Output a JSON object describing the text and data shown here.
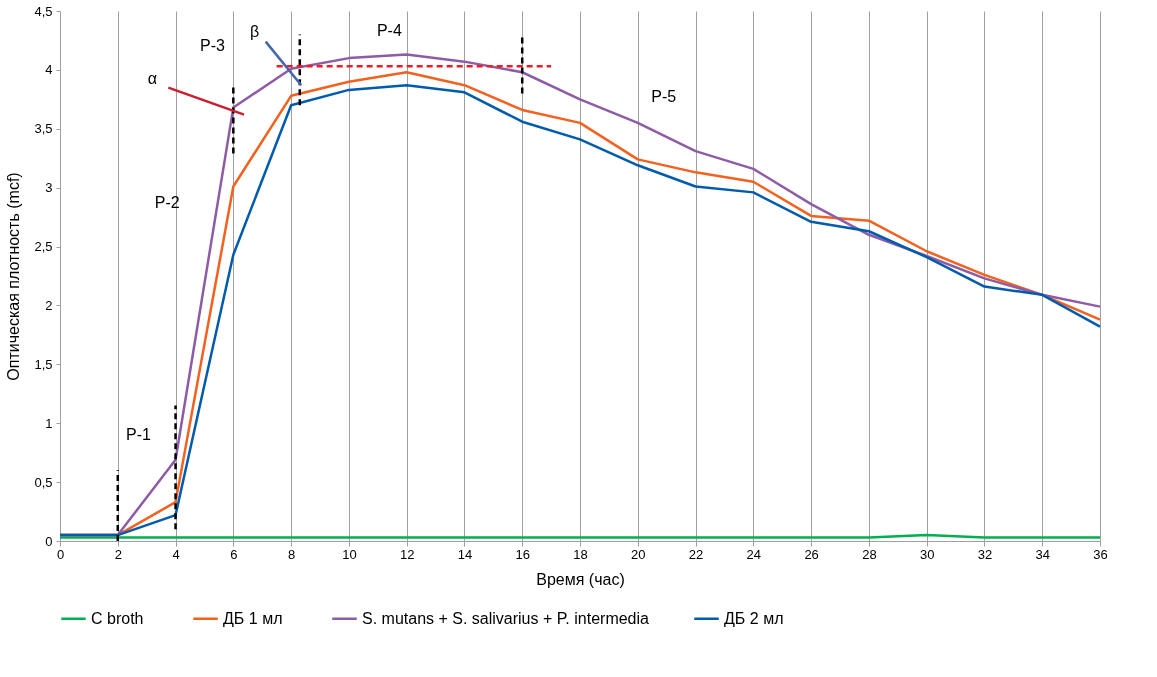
{
  "chart_data": {
    "type": "line",
    "xlabel": "Время (час)",
    "ylabel": "Оптическая плотность (mcf)",
    "x": [
      0,
      2,
      4,
      6,
      8,
      10,
      12,
      14,
      16,
      18,
      20,
      22,
      24,
      26,
      28,
      30,
      32,
      34,
      36
    ],
    "xlim": [
      0,
      36
    ],
    "xticks": [
      0,
      2,
      4,
      6,
      8,
      10,
      12,
      14,
      16,
      18,
      20,
      22,
      24,
      26,
      28,
      30,
      32,
      34,
      36
    ],
    "ylim": [
      0,
      4.5
    ],
    "yticks": [
      0,
      {
        "value": 0.5,
        "label": "0,5"
      },
      1,
      {
        "value": 1.5,
        "label": "1,5"
      },
      2,
      {
        "value": 2.5,
        "label": "2,5"
      },
      3,
      {
        "value": 3.5,
        "label": "3,5"
      },
      4,
      {
        "value": 4.5,
        "label": "4,5"
      }
    ],
    "grid": "x",
    "legend": "bottom",
    "line_style": "solid",
    "marker": "none",
    "series": [
      {
        "name": "C  broth",
        "color": "#00b050",
        "values": [
          0.03,
          0.03,
          0.03,
          0.03,
          0.03,
          0.03,
          0.03,
          0.03,
          0.03,
          0.03,
          0.03,
          0.03,
          0.03,
          0.03,
          0.03,
          0.05,
          0.03,
          0.03,
          0.03
        ]
      },
      {
        "name": "ДБ  1 мл",
        "color": "#f4611e",
        "values": [
          0.05,
          0.05,
          0.33,
          3.01,
          3.78,
          3.9,
          3.98,
          3.87,
          3.66,
          3.55,
          3.24,
          3.13,
          3.05,
          2.76,
          2.72,
          2.46,
          2.26,
          2.09,
          1.88
        ]
      },
      {
        "name": "S. mutans + S. salivarius + P. intermedia",
        "color": "#8e5ba6",
        "values": [
          0.05,
          0.05,
          0.69,
          3.68,
          4.01,
          4.1,
          4.13,
          4.07,
          3.98,
          3.75,
          3.55,
          3.31,
          3.16,
          2.86,
          2.6,
          2.42,
          2.23,
          2.09,
          1.99
        ]
      },
      {
        "name": "ДБ  2 мл",
        "color": "#005bac",
        "values": [
          0.05,
          0.05,
          0.22,
          2.43,
          3.7,
          3.83,
          3.87,
          3.81,
          3.56,
          3.41,
          3.19,
          3.01,
          2.96,
          2.71,
          2.63,
          2.41,
          2.16,
          2.09,
          1.82
        ]
      },
      {
        "type": "line",
        "color": "#000000",
        "line_style": "dashed",
        "x": [
          2,
          2
        ],
        "values": [
          0,
          0.6
        ]
      },
      {
        "type": "line",
        "color": "#000000",
        "line_style": "dashed",
        "x": [
          4,
          4
        ],
        "values": [
          0.1,
          1.15
        ]
      },
      {
        "type": "line",
        "color": "#000000",
        "line_style": "dashed",
        "x": [
          6,
          6
        ],
        "values": [
          3.29,
          3.88
        ]
      },
      {
        "type": "line",
        "color": "#000000",
        "line_style": "dashed",
        "x": [
          8.3,
          8.3
        ],
        "values": [
          3.7,
          4.3
        ]
      },
      {
        "type": "line",
        "color": "#000000",
        "line_style": "dashed",
        "x": [
          16,
          16
        ],
        "values": [
          3.8,
          4.3
        ]
      },
      {
        "type": "line",
        "color": "#ee1c25",
        "line_style": "dashed",
        "x": [
          7.5,
          17
        ],
        "values": [
          4.03,
          4.03
        ]
      },
      {
        "type": "line",
        "color": "#c8202f",
        "line_style": "solid",
        "x": [
          3.75,
          6.37
        ],
        "values": [
          3.85,
          3.62
        ]
      },
      {
        "type": "line",
        "color": "#4466b0",
        "line_style": "solid",
        "x": [
          7.12,
          8.35
        ],
        "values": [
          4.24,
          3.87
        ]
      }
    ],
    "annotations": [
      "P-1",
      "P-2",
      "P-3",
      "P-4",
      "P-5",
      "α",
      "β"
    ]
  }
}
